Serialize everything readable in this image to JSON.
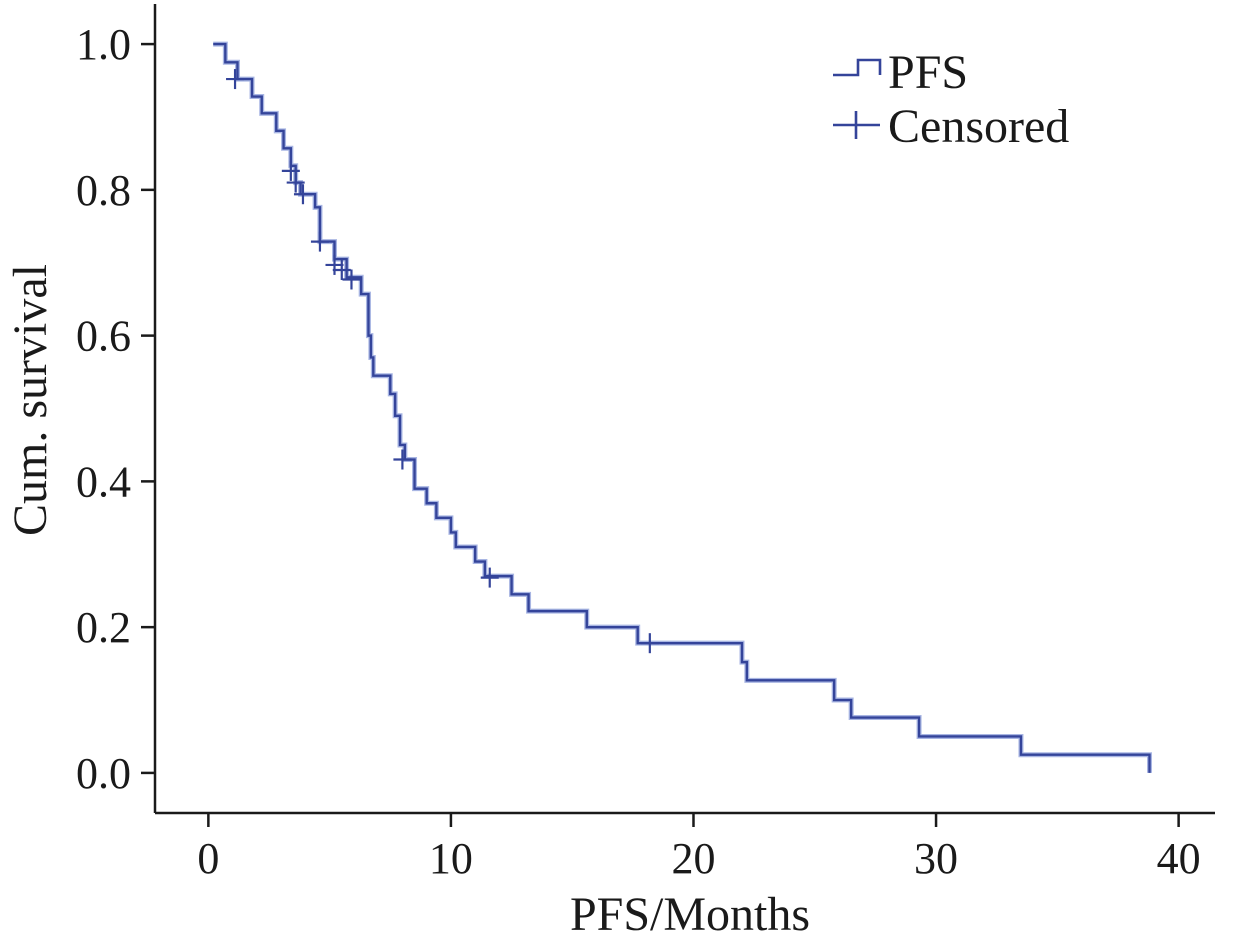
{
  "chart_data": {
    "type": "line",
    "subtype": "kaplan-meier",
    "title": "",
    "xlabel": "PFS/Months",
    "ylabel": "Cum. survival",
    "xlim": [
      -2.2,
      41.5
    ],
    "ylim": [
      -0.055,
      1.055
    ],
    "xticks": [
      0,
      10,
      20,
      30,
      40
    ],
    "xtick_labels": [
      "0",
      "10",
      "20",
      "30",
      "40"
    ],
    "yticks": [
      0.0,
      0.2,
      0.4,
      0.6,
      0.8,
      1.0
    ],
    "ytick_labels": [
      "0.0",
      "0.2",
      "0.4",
      "0.6",
      "0.8",
      "1.0"
    ],
    "grid": false,
    "legend": {
      "position": "top-right",
      "entries": [
        {
          "label": "PFS",
          "symbol": "step"
        },
        {
          "label": "Censored",
          "symbol": "plus"
        }
      ]
    },
    "series": [
      {
        "name": "PFS",
        "color": "#34449a",
        "steps": [
          [
            0.2,
            1.0
          ],
          [
            0.7,
            0.975
          ],
          [
            1.2,
            0.952
          ],
          [
            1.8,
            0.928
          ],
          [
            2.2,
            0.905
          ],
          [
            2.8,
            0.881
          ],
          [
            3.1,
            0.857
          ],
          [
            3.4,
            0.833
          ],
          [
            3.6,
            0.81
          ],
          [
            3.8,
            0.794
          ],
          [
            4.4,
            0.776
          ],
          [
            4.6,
            0.729
          ],
          [
            5.2,
            0.705
          ],
          [
            5.7,
            0.68
          ],
          [
            6.3,
            0.657
          ],
          [
            6.6,
            0.6
          ],
          [
            6.7,
            0.57
          ],
          [
            6.8,
            0.545
          ],
          [
            7.5,
            0.52
          ],
          [
            7.7,
            0.49
          ],
          [
            7.9,
            0.45
          ],
          [
            8.1,
            0.43
          ],
          [
            8.5,
            0.39
          ],
          [
            9.0,
            0.37
          ],
          [
            9.4,
            0.35
          ],
          [
            10.0,
            0.33
          ],
          [
            10.2,
            0.31
          ],
          [
            11.0,
            0.29
          ],
          [
            11.4,
            0.27
          ],
          [
            12.5,
            0.245
          ],
          [
            13.2,
            0.222
          ],
          [
            15.6,
            0.2
          ],
          [
            17.7,
            0.178
          ],
          [
            22.0,
            0.152
          ],
          [
            22.2,
            0.127
          ],
          [
            25.8,
            0.1
          ],
          [
            26.5,
            0.076
          ],
          [
            29.3,
            0.05
          ],
          [
            33.5,
            0.025
          ],
          [
            38.8,
            0.0
          ]
        ],
        "end_x": 38.8
      }
    ],
    "censored": [
      {
        "x": 1.1,
        "y": 0.952
      },
      {
        "x": 3.4,
        "y": 0.826
      },
      {
        "x": 3.6,
        "y": 0.81
      },
      {
        "x": 3.9,
        "y": 0.794
      },
      {
        "x": 4.6,
        "y": 0.729
      },
      {
        "x": 5.2,
        "y": 0.697
      },
      {
        "x": 5.5,
        "y": 0.69
      },
      {
        "x": 5.9,
        "y": 0.677
      },
      {
        "x": 8.0,
        "y": 0.43
      },
      {
        "x": 11.6,
        "y": 0.268
      },
      {
        "x": 18.2,
        "y": 0.178
      }
    ]
  }
}
